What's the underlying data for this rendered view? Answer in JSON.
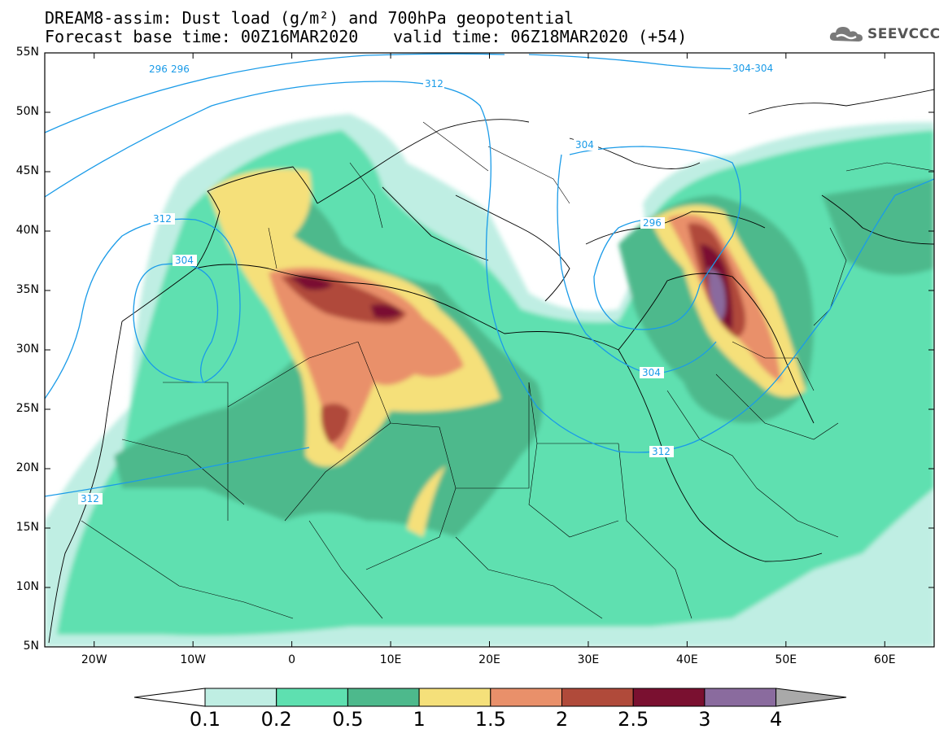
{
  "header": {
    "title_line1": "DREAM8-assim: Dust load (g/m²) and 700hPa geopotential",
    "title_line2_base": "Forecast base time: 00Z16MAR2020",
    "title_line2_valid": "valid time: 06Z18MAR2020 (+54)",
    "brand": "SEEVCCC",
    "brand_icon": "cloud-logo-icon"
  },
  "map": {
    "lat_labels": [
      "55N",
      "50N",
      "45N",
      "40N",
      "35N",
      "30N",
      "25N",
      "20N",
      "15N",
      "10N",
      "5N"
    ],
    "lat_values": [
      55,
      50,
      45,
      40,
      35,
      30,
      25,
      20,
      15,
      10,
      5
    ],
    "lon_labels": [
      "20W",
      "10W",
      "0",
      "10E",
      "20E",
      "30E",
      "40E",
      "50E",
      "60E"
    ],
    "lon_values": [
      -20,
      -10,
      0,
      10,
      20,
      30,
      40,
      50,
      60
    ],
    "extent": {
      "lon_min": -25,
      "lon_max": 65,
      "lat_min": 5,
      "lat_max": 55
    },
    "contour_labels": [
      "296",
      "296",
      "304-304",
      "312",
      "304",
      "312",
      "304",
      "296",
      "304",
      "312",
      "312"
    ],
    "contour_color": "#1a9be8"
  },
  "colorbar": {
    "labels": [
      "0.1",
      "0.2",
      "0.5",
      "1",
      "1.5",
      "2",
      "2.5",
      "3",
      "4"
    ],
    "colors": [
      "#ffffff",
      "#bfeee3",
      "#5ee0b0",
      "#4db98c",
      "#f5e07a",
      "#e9906a",
      "#b04a3a",
      "#7a1030",
      "#8a6b9e",
      "#a9a9a9"
    ]
  }
}
